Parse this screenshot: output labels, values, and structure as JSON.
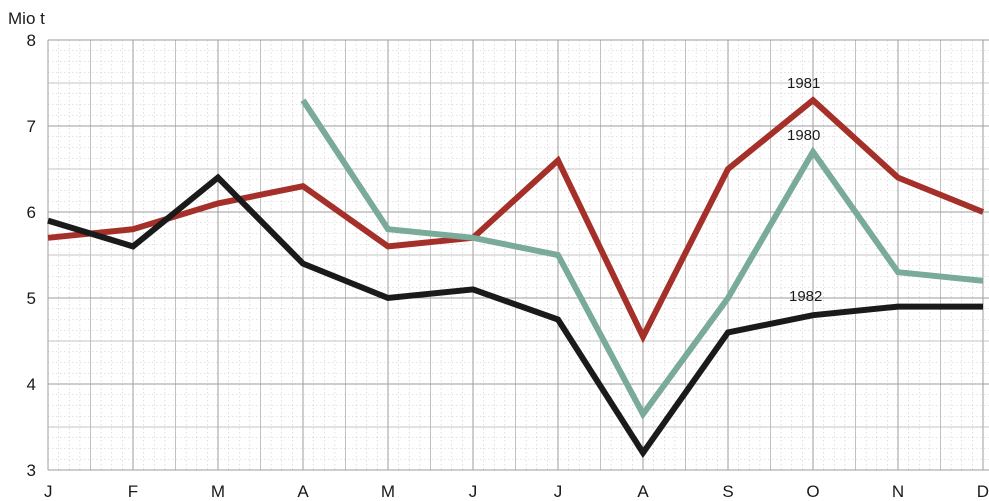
{
  "chart_data": {
    "type": "line",
    "title": "",
    "ylabel": "Mio t",
    "xlabel": "",
    "categories": [
      "J",
      "F",
      "M",
      "A",
      "M",
      "J",
      "J",
      "A",
      "S",
      "O",
      "N",
      "D"
    ],
    "yticks": [
      "8",
      "7",
      "6",
      "5",
      "4",
      "3"
    ],
    "ylim": [
      3,
      8
    ],
    "grid": true,
    "legend": "inline labels near series",
    "series": [
      {
        "name": "1981",
        "color": "#a5302a",
        "values": [
          5.7,
          5.8,
          6.1,
          6.3,
          5.6,
          5.7,
          6.6,
          4.55,
          6.5,
          7.3,
          6.4,
          6.0
        ]
      },
      {
        "name": "1980",
        "color": "#7aaa99",
        "values": [
          null,
          null,
          null,
          7.3,
          5.8,
          5.7,
          5.5,
          3.65,
          5.0,
          6.7,
          5.3,
          5.2
        ]
      },
      {
        "name": "1982",
        "color": "#1a1a1a",
        "values": [
          5.9,
          5.6,
          6.4,
          5.4,
          5.0,
          5.1,
          4.75,
          3.2,
          4.6,
          4.8,
          4.9,
          4.9
        ]
      }
    ]
  }
}
